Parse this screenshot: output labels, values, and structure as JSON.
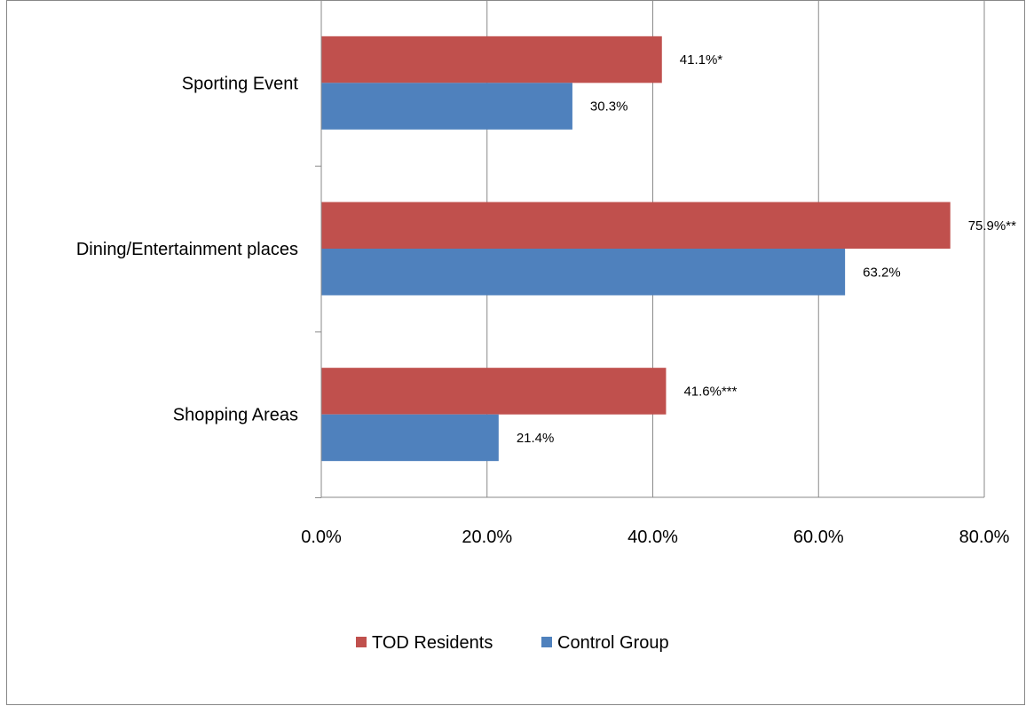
{
  "chart_data": {
    "type": "bar",
    "orientation": "horizontal",
    "categories": [
      "Sporting Event",
      "Dining/Entertainment places",
      "Shopping Areas"
    ],
    "series": [
      {
        "name": "TOD Residents",
        "color": "#C0504D",
        "values": [
          41.1,
          75.9,
          41.6
        ],
        "labels": [
          "41.1%*",
          "75.9%**",
          "41.6%***"
        ]
      },
      {
        "name": "Control Group",
        "color": "#4F81BD",
        "values": [
          30.3,
          63.2,
          21.4
        ],
        "labels": [
          "30.3%",
          "63.2%",
          "21.4%"
        ]
      }
    ],
    "xlim": [
      0,
      80
    ],
    "xticks": [
      0,
      20,
      40,
      60,
      80
    ],
    "xtick_labels": [
      "0.0%",
      "20.0%",
      "40.0%",
      "60.0%",
      "80.0%"
    ],
    "grid": "vertical",
    "legend": "bottom",
    "title": "",
    "xlabel": "",
    "ylabel": ""
  }
}
